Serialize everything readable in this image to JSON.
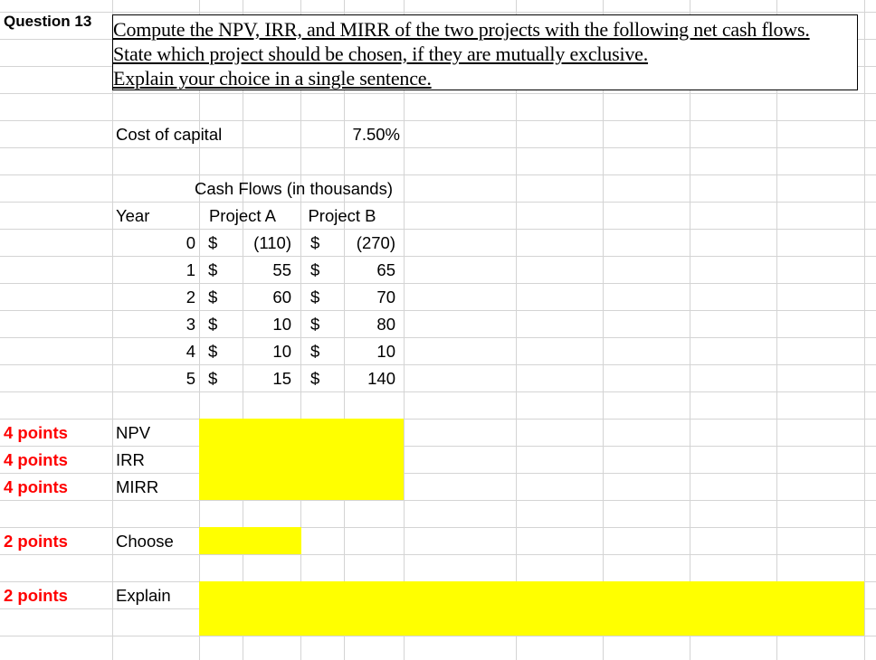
{
  "question": {
    "label": "Question 13",
    "lines": [
      "Compute the NPV, IRR, and MIRR of the two projects with the following net cash flows.",
      "State which project should be chosen, if they are mutually exclusive.",
      "Explain your choice in a single sentence."
    ]
  },
  "cost_of_capital": {
    "label": "Cost of capital",
    "value": "7.50%"
  },
  "cash_flows": {
    "title": "Cash Flows (in thousands)",
    "year_header": "Year",
    "project_a_header": "Project A",
    "project_b_header": "Project B",
    "currency": "$",
    "rows": [
      {
        "year": "0",
        "a": "(110)",
        "b": "(270)"
      },
      {
        "year": "1",
        "a": "55",
        "b": "65"
      },
      {
        "year": "2",
        "a": "60",
        "b": "70"
      },
      {
        "year": "3",
        "a": "10",
        "b": "80"
      },
      {
        "year": "4",
        "a": "10",
        "b": "10"
      },
      {
        "year": "5",
        "a": "15",
        "b": "140"
      }
    ]
  },
  "answers": {
    "npv": {
      "points": "4 points",
      "label": "NPV"
    },
    "irr": {
      "points": "4 points",
      "label": "IRR"
    },
    "mirr": {
      "points": "4 points",
      "label": "MIRR"
    },
    "choose": {
      "points": "2 points",
      "label": "Choose"
    },
    "explain": {
      "points": "2 points",
      "label": "Explain"
    }
  },
  "colors": {
    "highlight": "#ffff00",
    "points": "#ff0000",
    "gridline": "#d4d4d4"
  }
}
